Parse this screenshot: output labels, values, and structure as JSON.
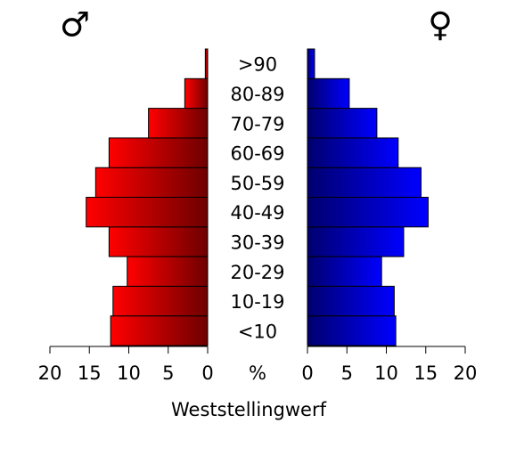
{
  "chart_data": {
    "type": "pyramid",
    "title": "Weststellingwerf",
    "xlabel": "%",
    "categories": [
      "<10",
      "10-19",
      "20-29",
      "30-39",
      "40-49",
      "50-59",
      "60-69",
      "70-79",
      "80-89",
      ">90"
    ],
    "series": [
      {
        "name": "♂",
        "color": "#ff0000",
        "values": [
          12.3,
          12.0,
          10.2,
          12.5,
          15.4,
          14.2,
          12.5,
          7.5,
          2.9,
          0.3
        ]
      },
      {
        "name": "♀",
        "color": "#0000ff",
        "values": [
          11.2,
          11.0,
          9.4,
          12.2,
          15.3,
          14.4,
          11.5,
          8.8,
          5.3,
          0.9
        ]
      }
    ],
    "xlim": [
      0,
      20
    ],
    "xticks": [
      0,
      5,
      10,
      15,
      20
    ]
  }
}
